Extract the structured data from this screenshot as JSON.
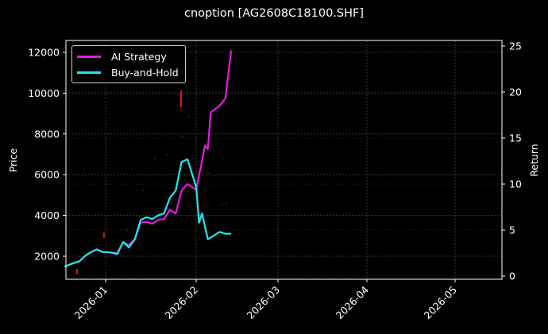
{
  "chart_data": {
    "type": "line",
    "title": "cnoption [AG2608C18100.SHF]",
    "xlabel": "",
    "ylabel": "Price",
    "y2label": "Return",
    "x_ticks": [
      "2026-01",
      "2026-02",
      "2026-03",
      "2026-04",
      "2026-05"
    ],
    "y_ticks": [
      2000,
      4000,
      6000,
      8000,
      10000,
      12000
    ],
    "y2_ticks": [
      0,
      5,
      10,
      15,
      20,
      25
    ],
    "ylim": [
      900,
      12500
    ],
    "y2lim": [
      0,
      25.5
    ],
    "grid": true,
    "legend_position": "upper left",
    "series": [
      {
        "name": "AI Strategy",
        "color": "#e619e6",
        "axis": "return",
        "x": [
          "2025-12-18",
          "2025-12-20",
          "2025-12-23",
          "2025-12-25",
          "2025-12-27",
          "2025-12-29",
          "2025-12-31",
          "2026-01-02",
          "2026-01-05",
          "2026-01-07",
          "2026-01-09",
          "2026-01-11",
          "2026-01-13",
          "2026-01-15",
          "2026-01-17",
          "2026-01-19",
          "2026-01-21",
          "2026-01-23",
          "2026-01-25",
          "2026-01-27",
          "2026-01-29",
          "2026-02-01",
          "2026-02-03",
          "2026-02-04",
          "2026-02-05",
          "2026-02-06",
          "2026-02-09",
          "2026-02-11",
          "2026-02-13"
        ],
        "values": [
          1.0,
          1.3,
          1.6,
          2.2,
          2.6,
          2.9,
          2.6,
          2.6,
          2.5,
          3.7,
          3.4,
          4.0,
          5.8,
          5.9,
          5.7,
          6.1,
          6.2,
          7.2,
          6.8,
          9.3,
          10.0,
          9.4,
          12.5,
          14.2,
          13.8,
          17.8,
          18.5,
          19.3,
          24.5
        ]
      },
      {
        "name": "Buy-and-Hold",
        "color": "#1de9e9",
        "axis": "return",
        "x": [
          "2025-12-18",
          "2025-12-20",
          "2025-12-23",
          "2025-12-25",
          "2025-12-27",
          "2025-12-29",
          "2025-12-31",
          "2026-01-02",
          "2026-01-05",
          "2026-01-07",
          "2026-01-09",
          "2026-01-11",
          "2026-01-13",
          "2026-01-15",
          "2026-01-17",
          "2026-01-19",
          "2026-01-21",
          "2026-01-23",
          "2026-01-25",
          "2026-01-27",
          "2026-01-29",
          "2026-02-01",
          "2026-02-02",
          "2026-02-03",
          "2026-02-05",
          "2026-02-07",
          "2026-02-09",
          "2026-02-11",
          "2026-02-13"
        ],
        "values": [
          1.0,
          1.3,
          1.6,
          2.2,
          2.6,
          2.9,
          2.6,
          2.6,
          2.4,
          3.7,
          3.1,
          4.0,
          6.1,
          6.4,
          6.2,
          6.6,
          6.8,
          8.5,
          9.3,
          12.4,
          12.7,
          9.7,
          5.8,
          6.8,
          4.0,
          4.4,
          4.8,
          4.6,
          4.6
        ]
      }
    ]
  }
}
